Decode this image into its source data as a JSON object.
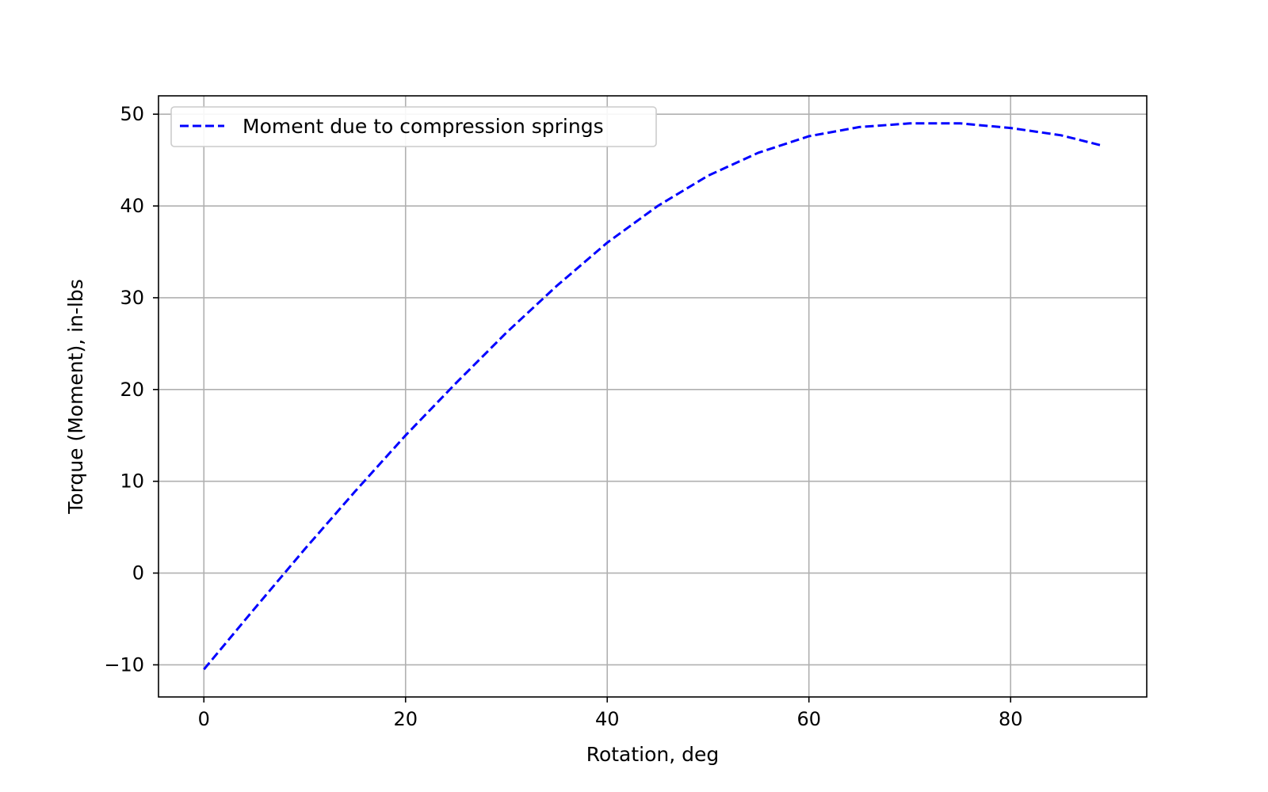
{
  "chart_data": {
    "type": "line",
    "title": "",
    "xlabel": "Rotation, deg",
    "ylabel": "Torque (Moment), in-lbs",
    "xlim": [
      -4.5,
      93.5
    ],
    "ylim": [
      -13.5,
      52
    ],
    "xticks": [
      0,
      20,
      40,
      60,
      80
    ],
    "yticks": [
      -10,
      0,
      10,
      20,
      30,
      40,
      50
    ],
    "xtick_labels": [
      "0",
      "20",
      "40",
      "60",
      "80"
    ],
    "ytick_labels": [
      "−10",
      "0",
      "10",
      "20",
      "30",
      "40",
      "50"
    ],
    "grid": true,
    "legend_position": "top-left",
    "series": [
      {
        "name": "Moment due to compression springs",
        "color": "#0000ff",
        "line_style": "dashed",
        "x": [
          0,
          5,
          10,
          15,
          20,
          25,
          30,
          35,
          40,
          45,
          50,
          55,
          60,
          65,
          70,
          75,
          80,
          85,
          89
        ],
        "y": [
          -10.5,
          -3.9,
          2.6,
          8.9,
          15.0,
          20.7,
          26.2,
          31.3,
          36.0,
          40.0,
          43.3,
          45.8,
          47.6,
          48.6,
          49.0,
          49.0,
          48.5,
          47.7,
          46.6
        ]
      }
    ]
  }
}
